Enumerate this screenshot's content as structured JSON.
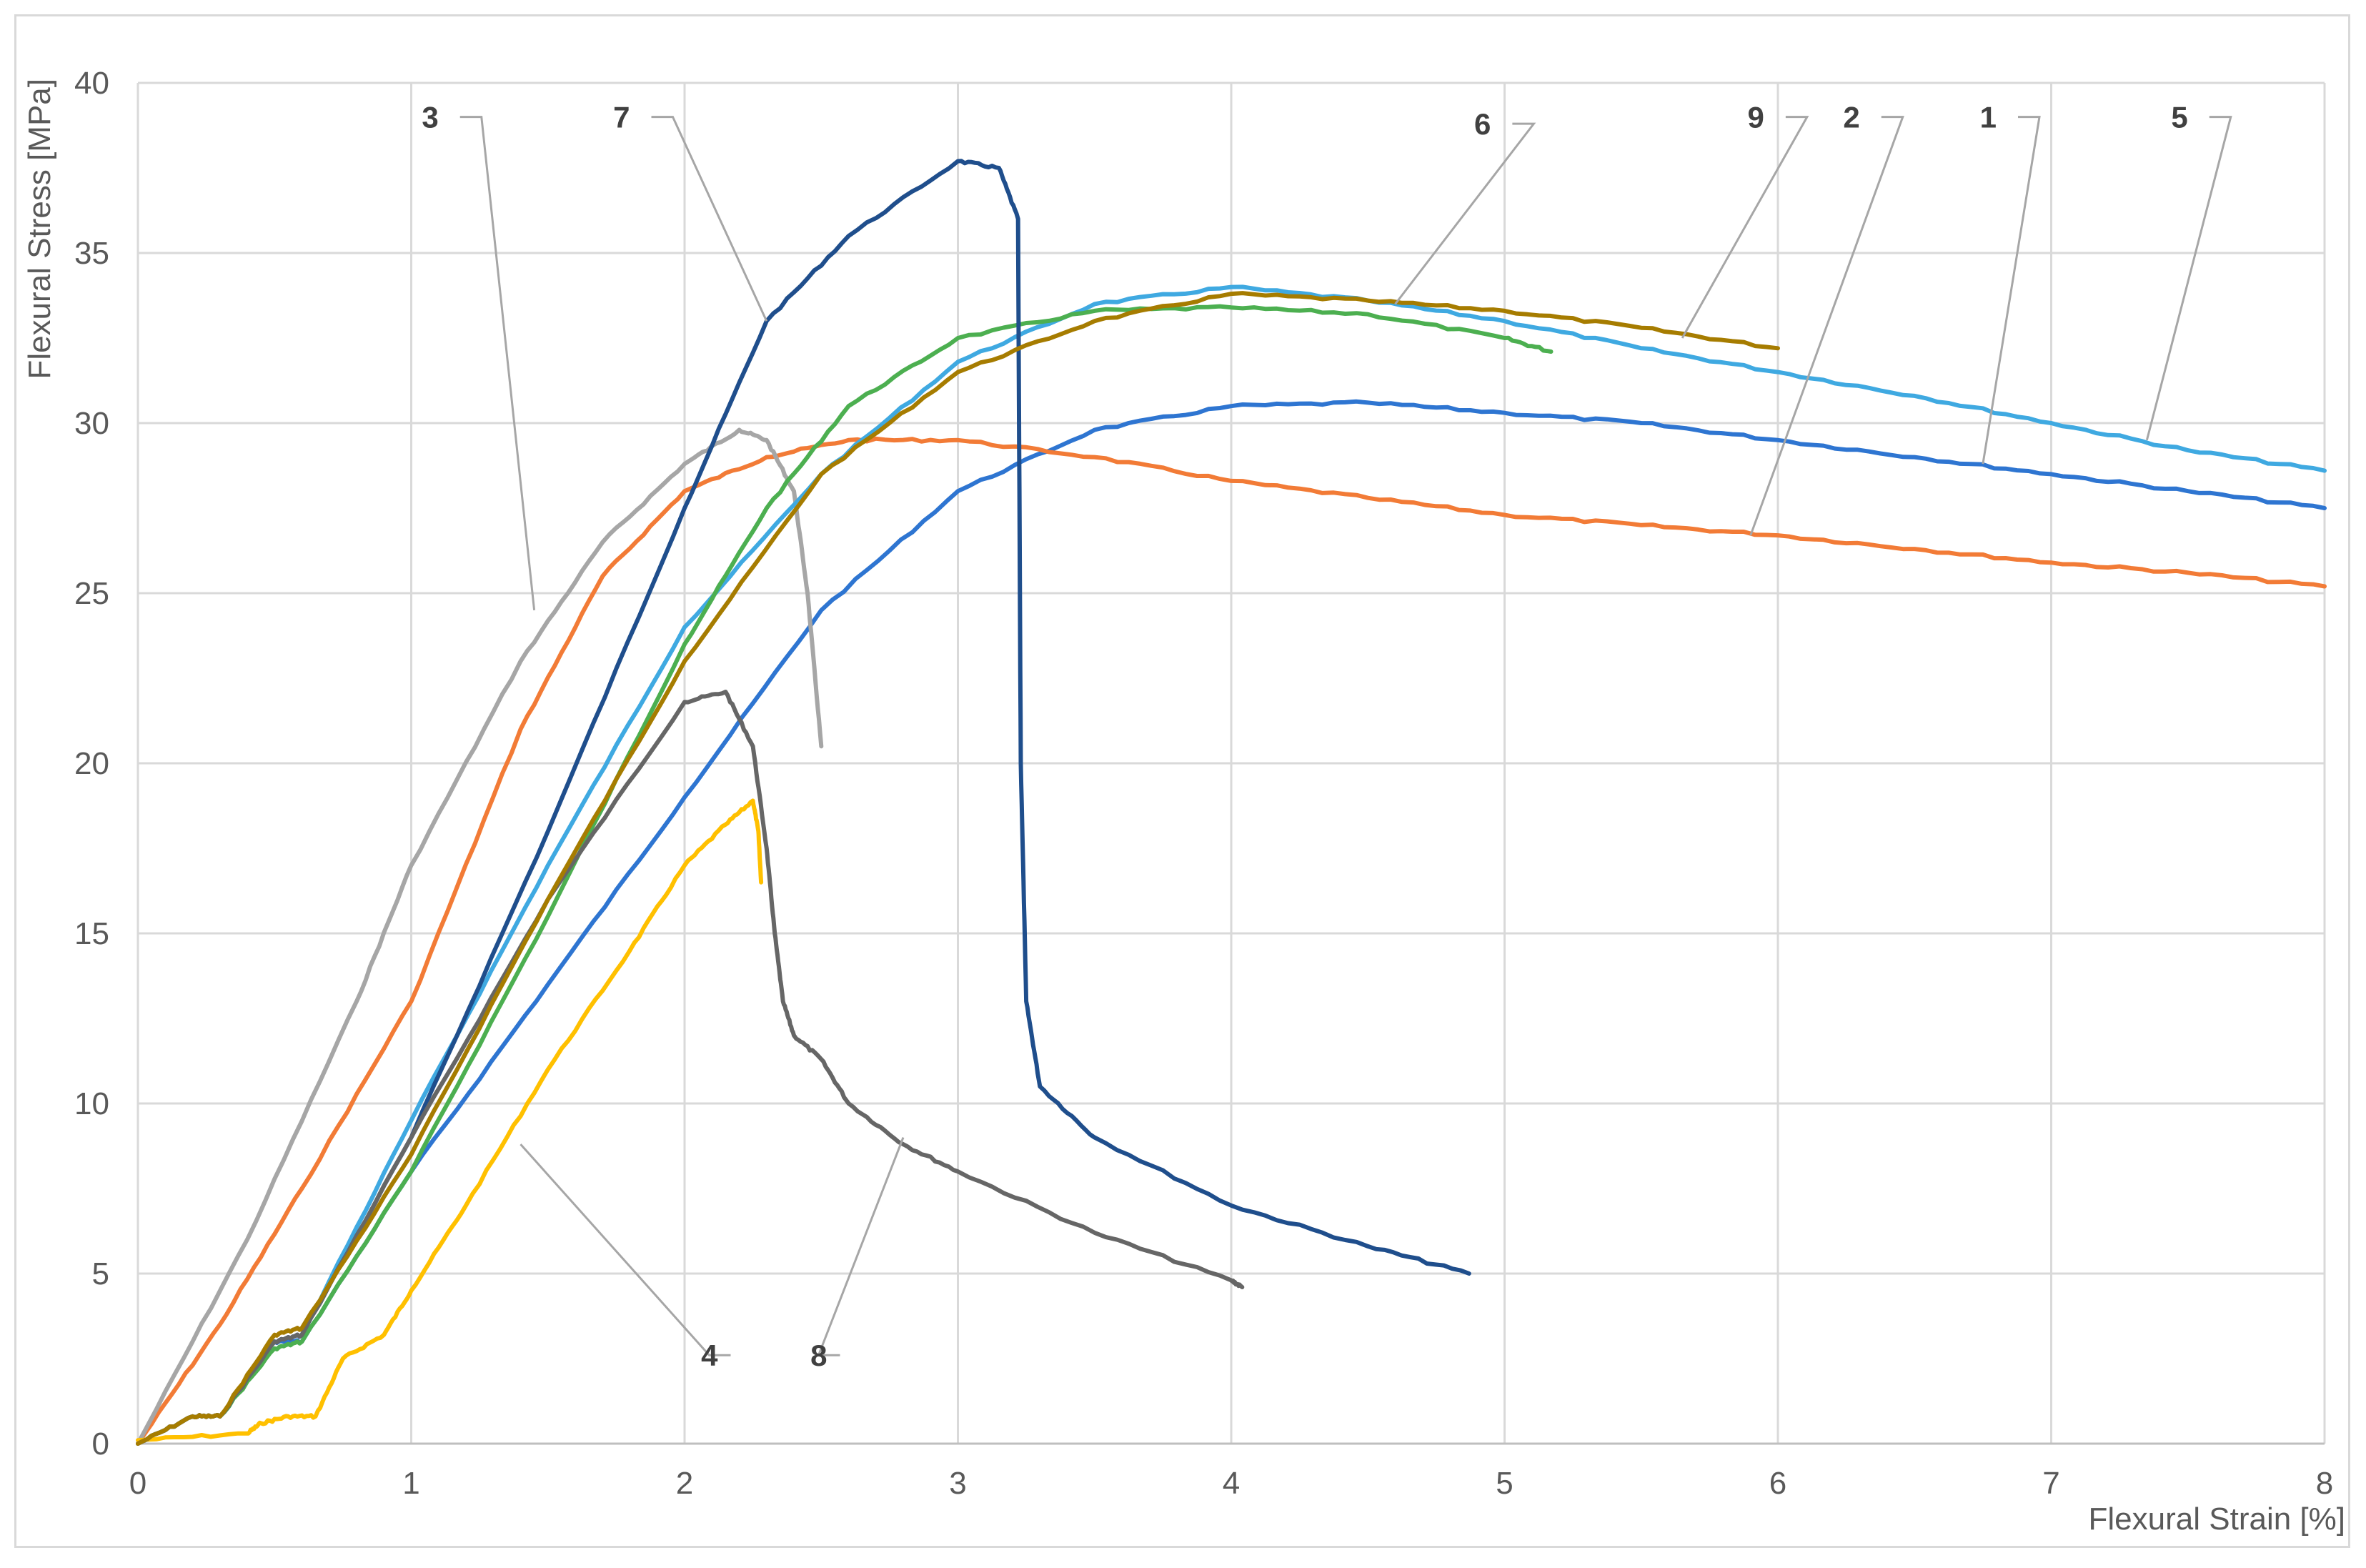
{
  "chart_data": {
    "type": "line",
    "xlabel": "Flexural Strain [%]",
    "ylabel": "Flexural Stress [MPa]",
    "xlim": [
      0,
      8
    ],
    "ylim": [
      0,
      40
    ],
    "x_ticks": [
      "0",
      "1",
      "2",
      "3",
      "4",
      "5",
      "6",
      "7",
      "8"
    ],
    "y_ticks": [
      "0",
      "5",
      "10",
      "15",
      "20",
      "25",
      "30",
      "35",
      "40"
    ],
    "grid": true,
    "legend": "none",
    "series": [
      {
        "name": "1",
        "color": "#2e75d1",
        "label_pos": [
          6.8,
          39.0
        ],
        "anchor": [
          6.75,
          28.8
        ],
        "points": [
          [
            0,
            0
          ],
          [
            0.2,
            0.8
          ],
          [
            0.3,
            0.8
          ],
          [
            0.5,
            3.0
          ],
          [
            0.6,
            3.0
          ],
          [
            1.0,
            8.0
          ],
          [
            1.5,
            13.5
          ],
          [
            2.0,
            19.0
          ],
          [
            2.5,
            24.5
          ],
          [
            3.0,
            28.0
          ],
          [
            3.5,
            29.8
          ],
          [
            4.0,
            30.5
          ],
          [
            4.5,
            30.6
          ],
          [
            5.0,
            30.3
          ],
          [
            5.5,
            30.0
          ],
          [
            6.0,
            29.5
          ],
          [
            6.5,
            29.0
          ],
          [
            7.0,
            28.5
          ],
          [
            7.5,
            28.0
          ],
          [
            8.0,
            27.5
          ]
        ]
      },
      {
        "name": "2",
        "color": "#f27b36",
        "label_pos": [
          6.3,
          39.0
        ],
        "anchor": [
          5.9,
          26.7
        ],
        "points": [
          [
            0,
            0
          ],
          [
            0.3,
            3.5
          ],
          [
            0.6,
            7.5
          ],
          [
            1.0,
            13.0
          ],
          [
            1.4,
            21.0
          ],
          [
            1.7,
            25.5
          ],
          [
            2.0,
            28.0
          ],
          [
            2.3,
            29.0
          ],
          [
            2.6,
            29.5
          ],
          [
            3.0,
            29.5
          ],
          [
            3.5,
            29.0
          ],
          [
            4.0,
            28.3
          ],
          [
            4.5,
            27.8
          ],
          [
            5.0,
            27.3
          ],
          [
            5.5,
            27.0
          ],
          [
            6.0,
            26.7
          ],
          [
            6.5,
            26.3
          ],
          [
            7.0,
            25.9
          ],
          [
            7.5,
            25.6
          ],
          [
            8.0,
            25.2
          ]
        ]
      },
      {
        "name": "3",
        "color": "#a6a6a6",
        "label_pos": [
          1.1,
          39.0
        ],
        "anchor": [
          1.45,
          24.5
        ],
        "points": [
          [
            0,
            0
          ],
          [
            0.4,
            6.0
          ],
          [
            0.8,
            13.0
          ],
          [
            1.0,
            17.0
          ],
          [
            1.4,
            23.0
          ],
          [
            1.7,
            26.5
          ],
          [
            2.0,
            28.8
          ],
          [
            2.2,
            29.8
          ],
          [
            2.3,
            29.5
          ],
          [
            2.4,
            28.0
          ],
          [
            2.45,
            25.0
          ],
          [
            2.5,
            20.5
          ]
        ]
      },
      {
        "name": "4",
        "color": "#ffc000",
        "label_pos": [
          2.2,
          2.6
        ],
        "anchor": [
          1.4,
          8.8
        ],
        "points": [
          [
            0,
            0.1
          ],
          [
            0.4,
            0.3
          ],
          [
            0.45,
            0.6
          ],
          [
            0.55,
            0.8
          ],
          [
            0.65,
            0.8
          ],
          [
            0.75,
            2.5
          ],
          [
            0.9,
            3.2
          ],
          [
            1.0,
            4.5
          ],
          [
            1.2,
            7.0
          ],
          [
            1.5,
            11.0
          ],
          [
            1.8,
            14.5
          ],
          [
            2.0,
            17.0
          ],
          [
            2.15,
            18.2
          ],
          [
            2.25,
            18.9
          ],
          [
            2.27,
            18.0
          ],
          [
            2.28,
            16.5
          ]
        ]
      },
      {
        "name": "5",
        "color": "#3fa9e1",
        "label_pos": [
          7.5,
          39.0
        ],
        "anchor": [
          7.35,
          29.5
        ],
        "points": [
          [
            0,
            0
          ],
          [
            0.2,
            0.8
          ],
          [
            0.3,
            0.8
          ],
          [
            0.5,
            3.0
          ],
          [
            0.6,
            3.2
          ],
          [
            1.0,
            9.5
          ],
          [
            1.5,
            17.0
          ],
          [
            2.0,
            24.0
          ],
          [
            2.5,
            28.5
          ],
          [
            3.0,
            31.8
          ],
          [
            3.5,
            33.5
          ],
          [
            4.0,
            34.0
          ],
          [
            4.5,
            33.6
          ],
          [
            5.0,
            33.0
          ],
          [
            5.5,
            32.2
          ],
          [
            6.0,
            31.5
          ],
          [
            6.5,
            30.8
          ],
          [
            7.0,
            30.0
          ],
          [
            7.5,
            29.2
          ],
          [
            8.0,
            28.6
          ]
        ]
      },
      {
        "name": "6",
        "color": "#4caf50",
        "label_pos": [
          4.95,
          38.8
        ],
        "anchor": [
          4.6,
          33.5
        ],
        "points": [
          [
            0,
            0
          ],
          [
            0.2,
            0.8
          ],
          [
            0.3,
            0.8
          ],
          [
            0.5,
            2.8
          ],
          [
            0.6,
            3.0
          ],
          [
            1.0,
            8.0
          ],
          [
            1.5,
            15.5
          ],
          [
            2.0,
            23.5
          ],
          [
            2.3,
            27.5
          ],
          [
            2.6,
            30.5
          ],
          [
            3.0,
            32.5
          ],
          [
            3.5,
            33.3
          ],
          [
            4.0,
            33.4
          ],
          [
            4.5,
            33.2
          ],
          [
            5.0,
            32.5
          ],
          [
            5.17,
            32.1
          ]
        ]
      },
      {
        "name": "7",
        "color": "#1f4e8c",
        "label_pos": [
          1.8,
          39.0
        ],
        "anchor": [
          2.3,
          33.0
        ],
        "points": [
          [
            0,
            0
          ],
          [
            0.2,
            0.8
          ],
          [
            0.3,
            0.8
          ],
          [
            0.5,
            3.0
          ],
          [
            0.6,
            3.2
          ],
          [
            1.0,
            9.0
          ],
          [
            1.5,
            18.0
          ],
          [
            2.0,
            27.5
          ],
          [
            2.3,
            33.0
          ],
          [
            2.6,
            35.5
          ],
          [
            3.0,
            37.7
          ],
          [
            3.15,
            37.5
          ],
          [
            3.22,
            36.0
          ],
          [
            3.23,
            20.0
          ],
          [
            3.25,
            13.0
          ],
          [
            3.3,
            10.5
          ],
          [
            3.5,
            9.0
          ],
          [
            4.0,
            7.0
          ],
          [
            4.5,
            5.8
          ],
          [
            4.87,
            5.0
          ]
        ]
      },
      {
        "name": "8",
        "color": "#666666",
        "label_pos": [
          2.6,
          2.6
        ],
        "anchor": [
          2.8,
          9.0
        ],
        "points": [
          [
            0,
            0
          ],
          [
            0.2,
            0.8
          ],
          [
            0.3,
            0.8
          ],
          [
            0.5,
            3.0
          ],
          [
            0.6,
            3.2
          ],
          [
            1.0,
            9.0
          ],
          [
            1.5,
            16.0
          ],
          [
            2.0,
            21.8
          ],
          [
            2.15,
            22.1
          ],
          [
            2.25,
            20.5
          ],
          [
            2.3,
            17.5
          ],
          [
            2.33,
            15.0
          ],
          [
            2.36,
            13.0
          ],
          [
            2.4,
            12.0
          ],
          [
            2.5,
            11.3
          ],
          [
            2.6,
            10.0
          ],
          [
            2.8,
            8.8
          ],
          [
            3.0,
            8.0
          ],
          [
            3.5,
            6.2
          ],
          [
            4.0,
            4.8
          ],
          [
            4.04,
            4.6
          ]
        ]
      },
      {
        "name": "9",
        "color": "#a67c00",
        "label_pos": [
          5.95,
          39.0
        ],
        "anchor": [
          5.65,
          32.5
        ],
        "points": [
          [
            0,
            0
          ],
          [
            0.2,
            0.8
          ],
          [
            0.3,
            0.8
          ],
          [
            0.5,
            3.2
          ],
          [
            0.6,
            3.4
          ],
          [
            1.0,
            8.5
          ],
          [
            1.5,
            16.0
          ],
          [
            2.0,
            23.0
          ],
          [
            2.5,
            28.5
          ],
          [
            3.0,
            31.5
          ],
          [
            3.5,
            33.0
          ],
          [
            4.0,
            33.8
          ],
          [
            4.5,
            33.6
          ],
          [
            5.0,
            33.3
          ],
          [
            5.5,
            32.8
          ],
          [
            6.0,
            32.2
          ]
        ]
      }
    ]
  }
}
